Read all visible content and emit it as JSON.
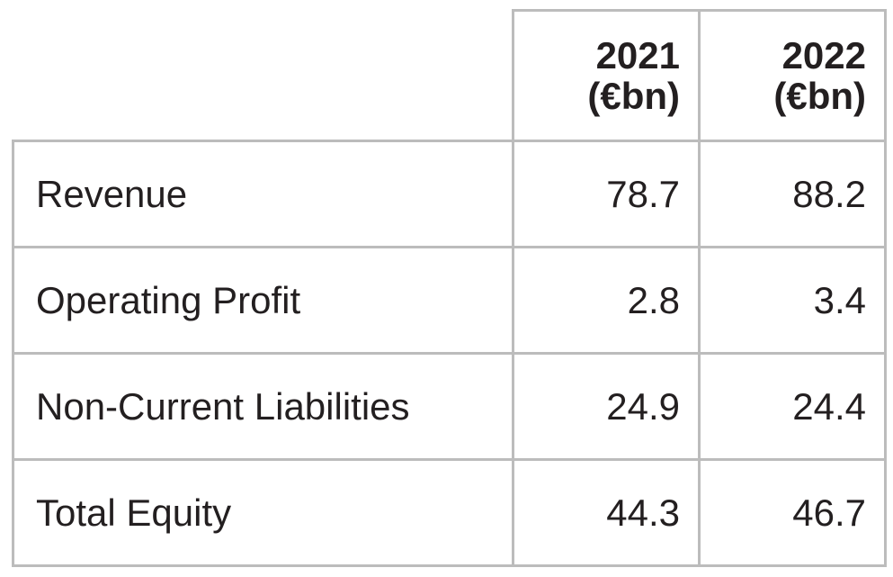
{
  "table": {
    "columns": [
      {
        "year": "2021",
        "unit": "(€bn)"
      },
      {
        "year": "2022",
        "unit": "(€bn)"
      }
    ],
    "rows": [
      {
        "label": "Revenue",
        "values": [
          "78.7",
          "88.2"
        ]
      },
      {
        "label": "Operating Profit",
        "values": [
          "2.8",
          "3.4"
        ]
      },
      {
        "label": "Non-Current Liabilities",
        "values": [
          "24.9",
          "24.4"
        ]
      },
      {
        "label": "Total Equity",
        "values": [
          "44.3",
          "46.7"
        ]
      }
    ]
  }
}
